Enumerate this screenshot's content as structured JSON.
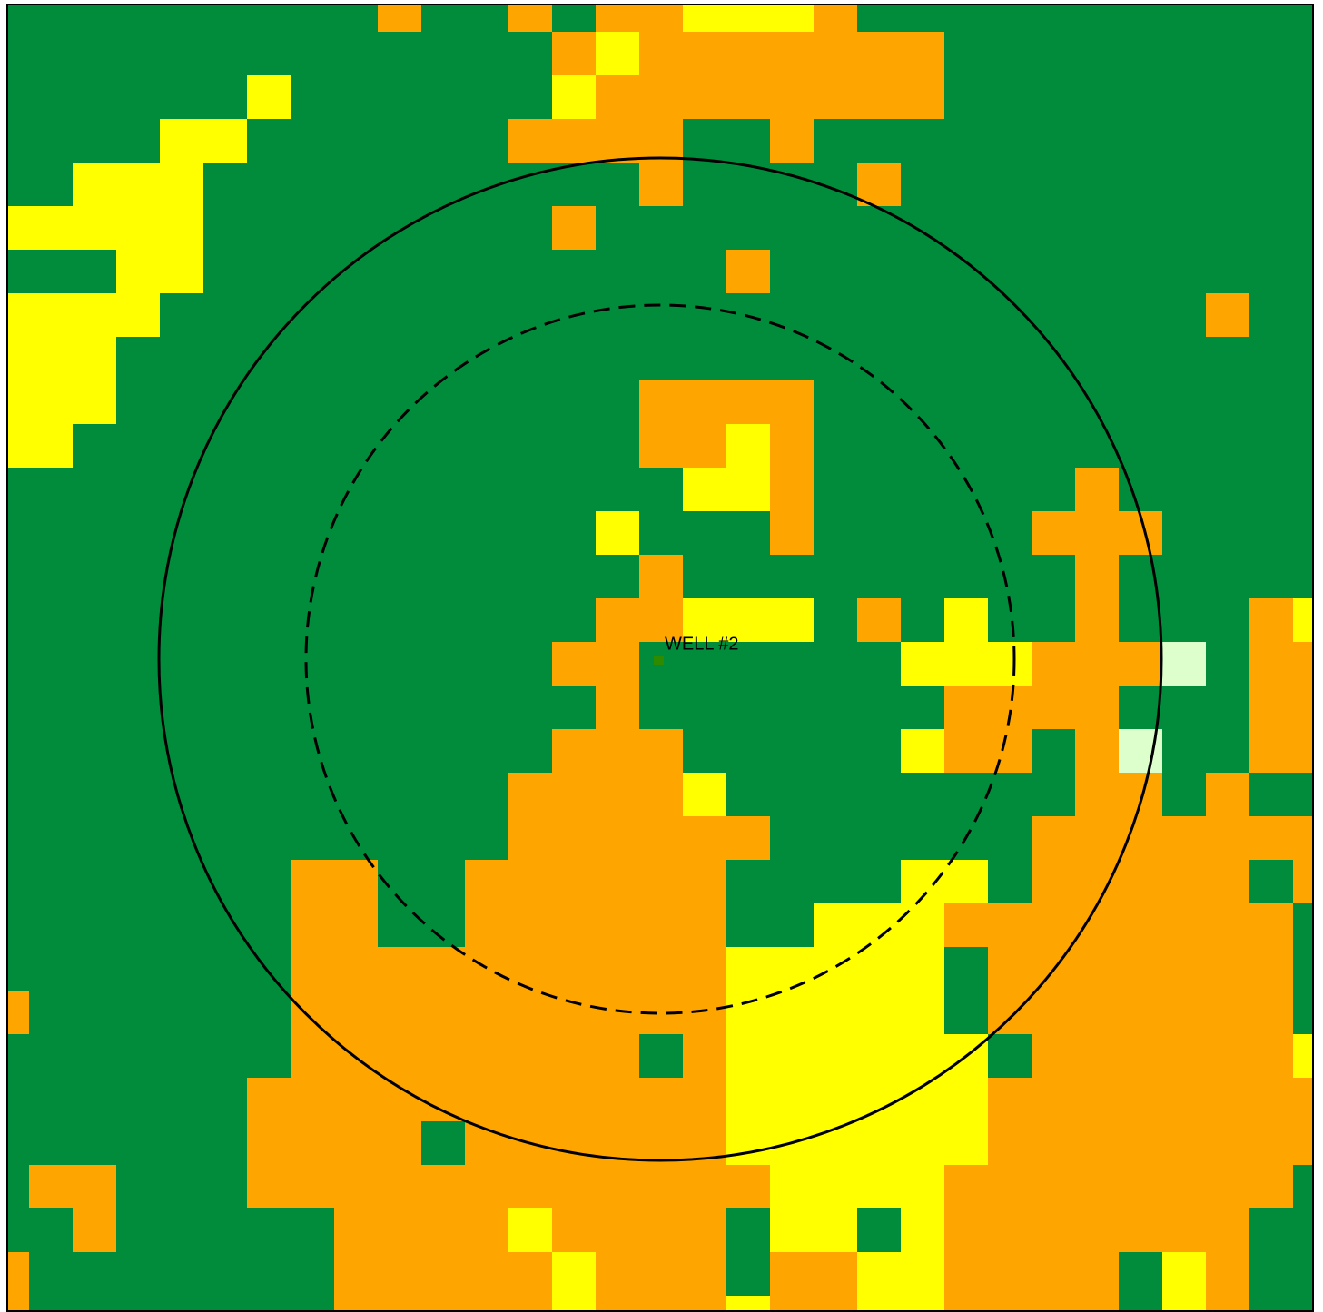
{
  "well": {
    "label": "WELL #2"
  }
}
